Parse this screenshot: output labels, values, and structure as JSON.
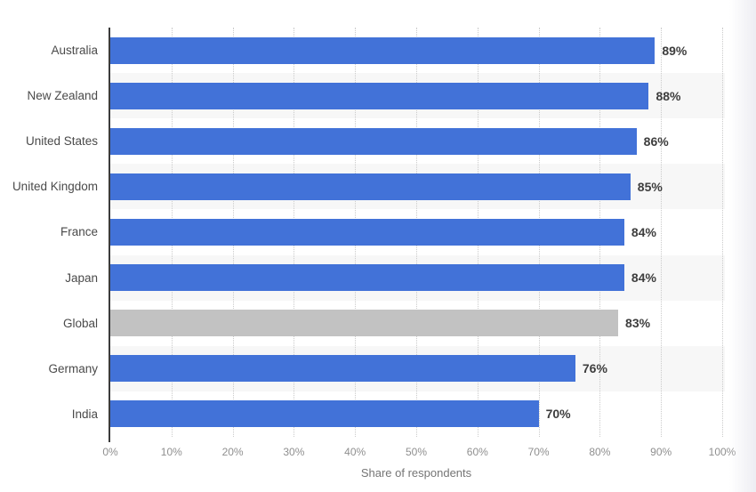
{
  "chart_data": {
    "type": "bar",
    "orientation": "horizontal",
    "title": "",
    "xlabel": "Share of respondents",
    "ylabel": "",
    "categories": [
      "Australia",
      "New Zealand",
      "United States",
      "United Kingdom",
      "France",
      "Japan",
      "Global",
      "Germany",
      "India"
    ],
    "values": [
      89,
      88,
      86,
      85,
      84,
      84,
      83,
      76,
      70
    ],
    "value_labels": [
      "89%",
      "88%",
      "86%",
      "85%",
      "84%",
      "84%",
      "83%",
      "76%",
      "70%"
    ],
    "highlight_category": "Global",
    "xlim": [
      0,
      100
    ],
    "x_ticks": [
      "0%",
      "10%",
      "20%",
      "30%",
      "40%",
      "50%",
      "60%",
      "70%",
      "80%",
      "90%",
      "100%"
    ],
    "x_tick_values": [
      0,
      10,
      20,
      30,
      40,
      50,
      60,
      70,
      80,
      90,
      100
    ],
    "grid": "vertical-dotted",
    "legend": "none",
    "row_striping": "alternate",
    "colors": {
      "bar_default": "#4272d8",
      "bar_highlight": "#c2c2c2",
      "row_stripe": "#f7f7f7",
      "gridline": "#cbcbcb",
      "axis_line": "#3b3b3b",
      "category_label": "#4a4a4a",
      "value_label": "#3d3d3d",
      "tick_label": "#8f8f8f",
      "axis_title": "#757575",
      "background": "#ffffff"
    }
  }
}
